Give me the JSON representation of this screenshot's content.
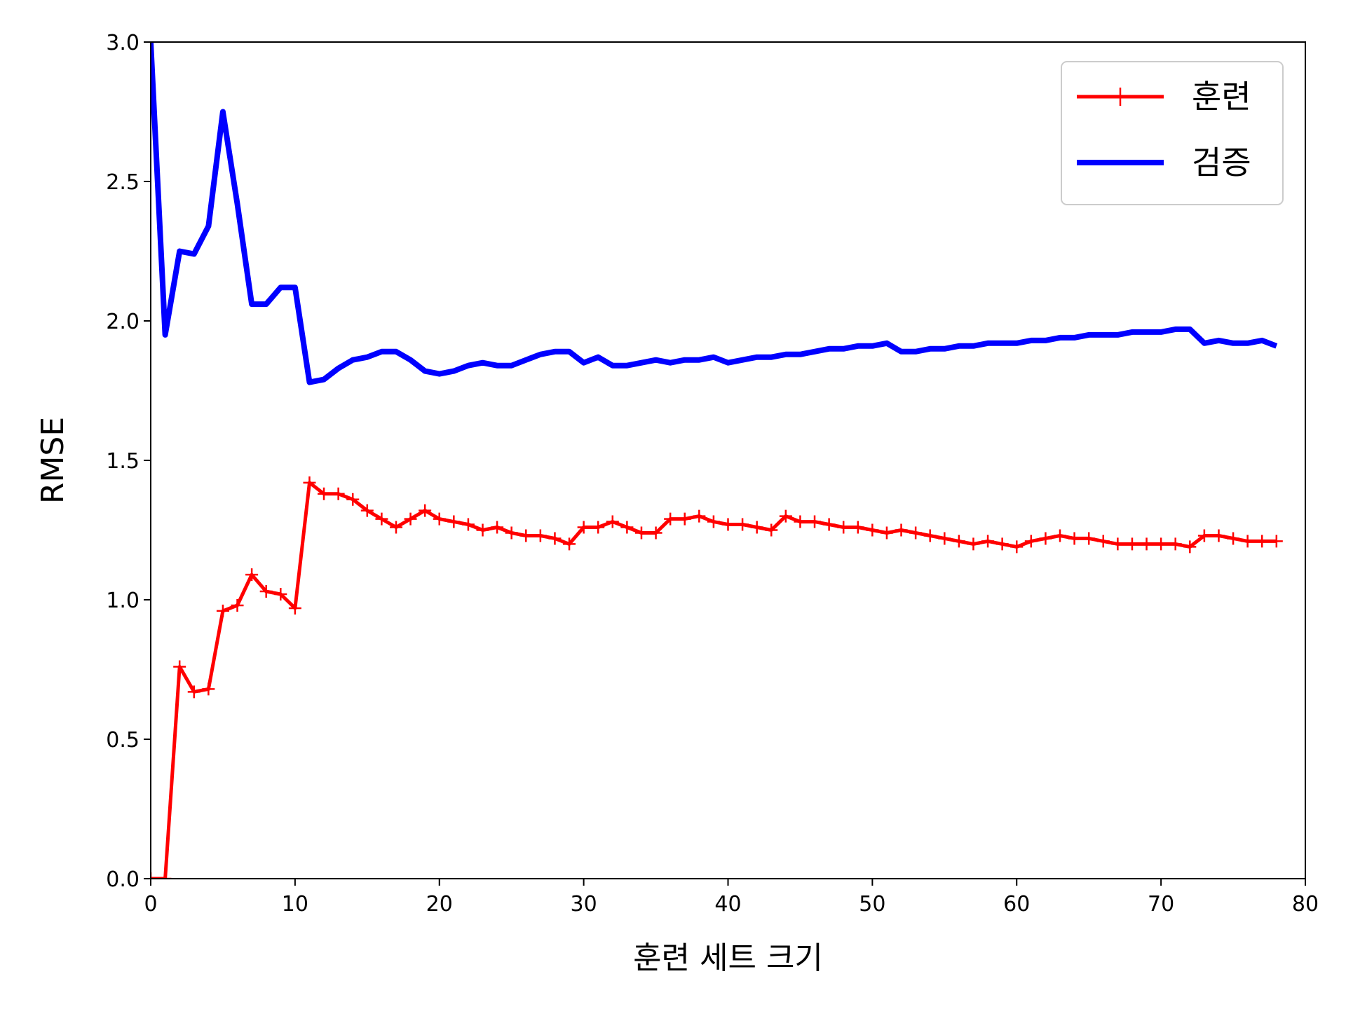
{
  "chart_data": {
    "type": "line",
    "xlabel": "훈련 세트 크기",
    "ylabel": "RMSE",
    "xlim": [
      0,
      80
    ],
    "ylim": [
      0,
      3
    ],
    "xticks": [
      0,
      10,
      20,
      30,
      40,
      50,
      60,
      70,
      80
    ],
    "yticks": [
      0.0,
      0.5,
      1.0,
      1.5,
      2.0,
      2.5,
      3.0
    ],
    "xtick_labels": [
      "0",
      "10",
      "20",
      "30",
      "40",
      "50",
      "60",
      "70",
      "80"
    ],
    "ytick_labels": [
      "0.0",
      "0.5",
      "1.0",
      "1.5",
      "2.0",
      "2.5",
      "3.0"
    ],
    "grid": false,
    "legend_position": "top-right",
    "x": [
      0,
      1,
      2,
      3,
      4,
      5,
      6,
      7,
      8,
      9,
      10,
      11,
      12,
      13,
      14,
      15,
      16,
      17,
      18,
      19,
      20,
      21,
      22,
      23,
      24,
      25,
      26,
      27,
      28,
      29,
      30,
      31,
      32,
      33,
      34,
      35,
      36,
      37,
      38,
      39,
      40,
      41,
      42,
      43,
      44,
      45,
      46,
      47,
      48,
      49,
      50,
      51,
      52,
      53,
      54,
      55,
      56,
      57,
      58,
      59,
      60,
      61,
      62,
      63,
      64,
      65,
      66,
      67,
      68,
      69,
      70,
      71,
      72,
      73,
      74,
      75,
      76,
      77,
      78
    ],
    "series": [
      {
        "name": "훈련",
        "color": "#ff0000",
        "marker": "+",
        "line_width": "thin",
        "values": [
          0.0,
          0.0,
          0.76,
          0.67,
          0.68,
          0.96,
          0.98,
          1.09,
          1.03,
          1.02,
          0.97,
          1.42,
          1.38,
          1.38,
          1.36,
          1.32,
          1.29,
          1.26,
          1.29,
          1.32,
          1.29,
          1.28,
          1.27,
          1.25,
          1.26,
          1.24,
          1.23,
          1.23,
          1.22,
          1.2,
          1.26,
          1.26,
          1.28,
          1.26,
          1.24,
          1.24,
          1.29,
          1.29,
          1.3,
          1.28,
          1.27,
          1.27,
          1.26,
          1.25,
          1.3,
          1.28,
          1.28,
          1.27,
          1.26,
          1.26,
          1.25,
          1.24,
          1.25,
          1.24,
          1.23,
          1.22,
          1.21,
          1.2,
          1.21,
          1.2,
          1.19,
          1.21,
          1.22,
          1.23,
          1.22,
          1.22,
          1.21,
          1.2,
          1.2,
          1.2,
          1.2,
          1.2,
          1.19,
          1.23,
          1.23,
          1.22,
          1.21,
          1.21,
          1.21
        ]
      },
      {
        "name": "검증",
        "color": "#0000ff",
        "marker": "",
        "line_width": "thick",
        "values": [
          3.0,
          1.95,
          2.25,
          2.24,
          2.34,
          2.75,
          2.42,
          2.06,
          2.06,
          2.12,
          2.12,
          1.78,
          1.79,
          1.83,
          1.86,
          1.87,
          1.89,
          1.89,
          1.86,
          1.82,
          1.81,
          1.82,
          1.84,
          1.85,
          1.84,
          1.84,
          1.86,
          1.88,
          1.89,
          1.89,
          1.85,
          1.87,
          1.84,
          1.84,
          1.85,
          1.86,
          1.85,
          1.86,
          1.86,
          1.87,
          1.85,
          1.86,
          1.87,
          1.87,
          1.88,
          1.88,
          1.89,
          1.9,
          1.9,
          1.91,
          1.91,
          1.92,
          1.89,
          1.89,
          1.9,
          1.9,
          1.91,
          1.91,
          1.92,
          1.92,
          1.92,
          1.93,
          1.93,
          1.94,
          1.94,
          1.95,
          1.95,
          1.95,
          1.96,
          1.96,
          1.96,
          1.97,
          1.97,
          1.92,
          1.93,
          1.92,
          1.92,
          1.93,
          1.91
        ]
      }
    ]
  }
}
